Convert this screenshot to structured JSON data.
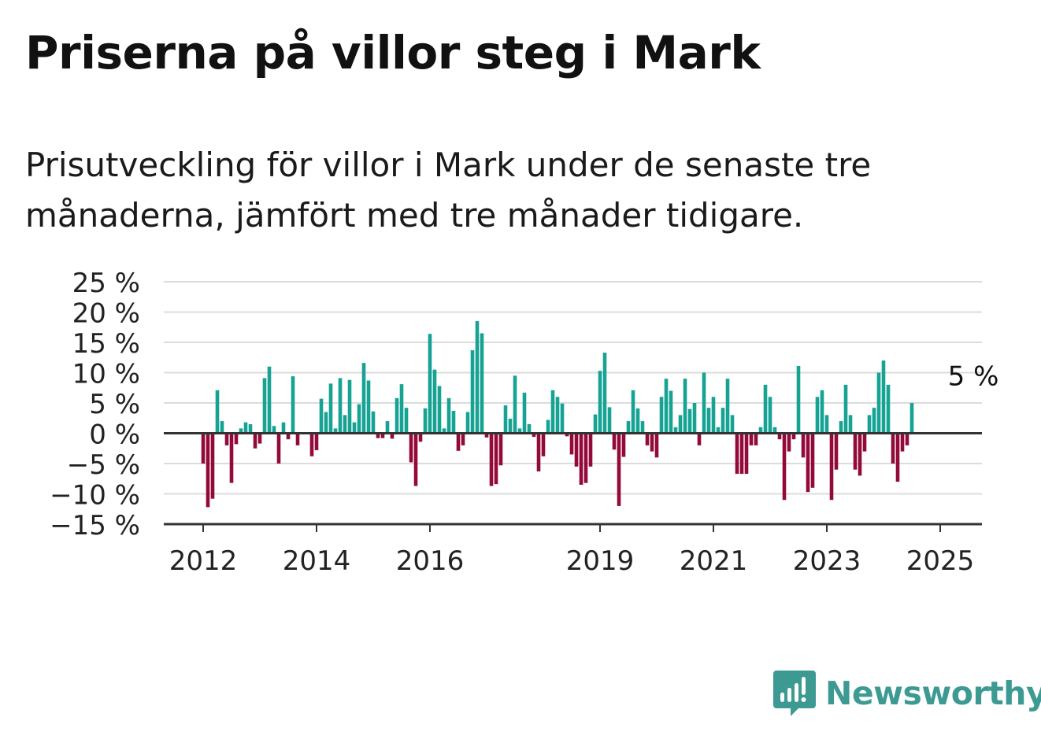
{
  "title": "Priserna på villor steg i Mark",
  "subtitle": "Prisutveckling för villor i Mark under de senaste tre månaderna, jämfört med tre månader tidigare.",
  "brand": {
    "name": "Newsworthy",
    "color": "#3c9a93"
  },
  "colors": {
    "positive": "#16a394",
    "negative": "#930a3a",
    "grid": "#dcdcdc",
    "axis": "#333333"
  },
  "chart_data": {
    "type": "bar",
    "title": "Priserna på villor steg i Mark",
    "xlabel": "",
    "ylabel": "",
    "unit": "%",
    "ylim": [
      -15,
      25
    ],
    "yticks": [
      25,
      20,
      15,
      10,
      5,
      0,
      -5,
      -10,
      -15
    ],
    "ytick_labels": [
      "25 %",
      "20 %",
      "15 %",
      "10 %",
      "5 %",
      "0 %",
      "−5 %",
      "−10 %",
      "−15 %"
    ],
    "xticks": [
      {
        "label": "2012",
        "date": "2012-01"
      },
      {
        "label": "2014",
        "date": "2014-01"
      },
      {
        "label": "2016",
        "date": "2016-01"
      },
      {
        "label": "2019",
        "date": "2019-01"
      },
      {
        "label": "2021",
        "date": "2021-01"
      },
      {
        "label": "2023",
        "date": "2023-01"
      },
      {
        "label": "2025",
        "date": "2025-01"
      }
    ],
    "grid": true,
    "start": "2012-01",
    "values": [
      -5,
      -12.2,
      -10.8,
      7.1,
      2,
      -2,
      -8.2,
      -1.8,
      0.8,
      1.8,
      1.5,
      -2.5,
      -1.7,
      9.1,
      11,
      1.2,
      -5,
      1.8,
      -1,
      9.4,
      -2,
      0,
      0,
      -3.8,
      -2.8,
      5.7,
      3.5,
      8.2,
      0.8,
      9.1,
      3,
      8.8,
      1.8,
      4.8,
      11.6,
      8.7,
      3.6,
      -0.8,
      -0.8,
      2,
      -0.9,
      5.8,
      8.1,
      4.2,
      -4.8,
      -8.7,
      -1.4,
      4.1,
      16.4,
      10.5,
      7.8,
      0.8,
      5.8,
      3.7,
      -2.9,
      -2,
      3.5,
      13.7,
      18.5,
      16.5,
      -0.7,
      -8.7,
      -8.4,
      -5.3,
      4.6,
      2.4,
      9.5,
      0.8,
      6.7,
      1.5,
      -0.6,
      -6.3,
      -3.8,
      2.2,
      7.1,
      6,
      4.9,
      -0.5,
      -3.5,
      -5.5,
      -8.5,
      -8.2,
      -5.5,
      3.1,
      10.3,
      13.3,
      4.3,
      -2.7,
      -12,
      -3.9,
      2,
      7.1,
      4.1,
      2,
      -2,
      -3,
      -4,
      6,
      9,
      7,
      1,
      3,
      9,
      4,
      5,
      -2,
      10,
      4.2,
      6,
      1,
      4.2,
      9,
      3,
      -6.7,
      -6.7,
      -6.7,
      -2,
      -2,
      1,
      8,
      6,
      1,
      -1,
      -11,
      -3,
      -1,
      11.1,
      -4,
      -9.7,
      -9,
      6,
      7.1,
      3,
      -11,
      -6,
      2,
      8,
      3,
      -6,
      -7,
      -3,
      3,
      4.2,
      10,
      12,
      8,
      -5,
      -8,
      -3,
      -2,
      5
    ],
    "annotation": {
      "text": "5 %",
      "value": 5,
      "date": "2025-03"
    }
  }
}
